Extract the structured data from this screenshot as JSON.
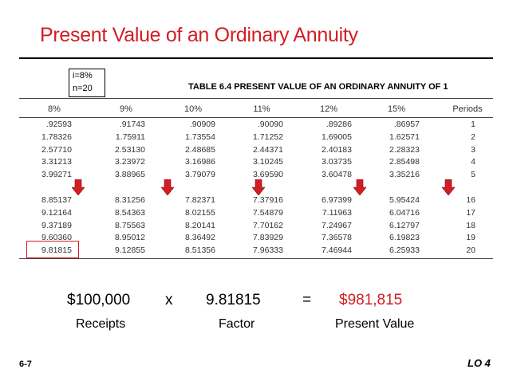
{
  "title": "Present Value of an Ordinary Annuity",
  "params": [
    "i=8%",
    "n=20"
  ],
  "table_title": "TABLE 6.4   PRESENT VALUE OF AN ORDINARY ANNUITY OF 1",
  "headers": [
    "8%",
    "9%",
    "10%",
    "11%",
    "12%",
    "15%",
    "Periods"
  ],
  "rows_top": [
    [
      ".92593",
      ".91743",
      ".90909",
      ".90090",
      ".89286",
      ".86957",
      "1"
    ],
    [
      "1.78326",
      "1.75911",
      "1.73554",
      "1.71252",
      "1.69005",
      "1.62571",
      "2"
    ],
    [
      "2.57710",
      "2.53130",
      "2.48685",
      "2.44371",
      "2.40183",
      "2.28323",
      "3"
    ],
    [
      "3.31213",
      "3.23972",
      "3.16986",
      "3.10245",
      "3.03735",
      "2.85498",
      "4"
    ],
    [
      "3.99271",
      "3.88965",
      "3.79079",
      "3.69590",
      "3.60478",
      "3.35216",
      "5"
    ]
  ],
  "rows_bottom": [
    [
      "8.85137",
      "8.31256",
      "7.82371",
      "7.37916",
      "6.97399",
      "5.95424",
      "16"
    ],
    [
      "9.12164",
      "8.54363",
      "8.02155",
      "7.54879",
      "7.11963",
      "6.04716",
      "17"
    ],
    [
      "9.37189",
      "8.75563",
      "8.20141",
      "7.70162",
      "7.24967",
      "6.12797",
      "18"
    ],
    [
      "9.60360",
      "8.95012",
      "8.36492",
      "7.83929",
      "7.36578",
      "6.19823",
      "19"
    ],
    [
      "9.81815",
      "9.12855",
      "8.51356",
      "7.96333",
      "7.46944",
      "6.25933",
      "20"
    ]
  ],
  "equation": {
    "receipts": "$100,000",
    "times": "x",
    "factor": "9.81815",
    "equals": "=",
    "result": "$981,815"
  },
  "labels": {
    "receipts": "Receipts",
    "factor": "Factor",
    "present_value": "Present Value"
  },
  "slide_number": "6-7",
  "learning_objective": "LO 4",
  "colors": {
    "accent": "#d31d25",
    "arrow": "#d31d25"
  }
}
